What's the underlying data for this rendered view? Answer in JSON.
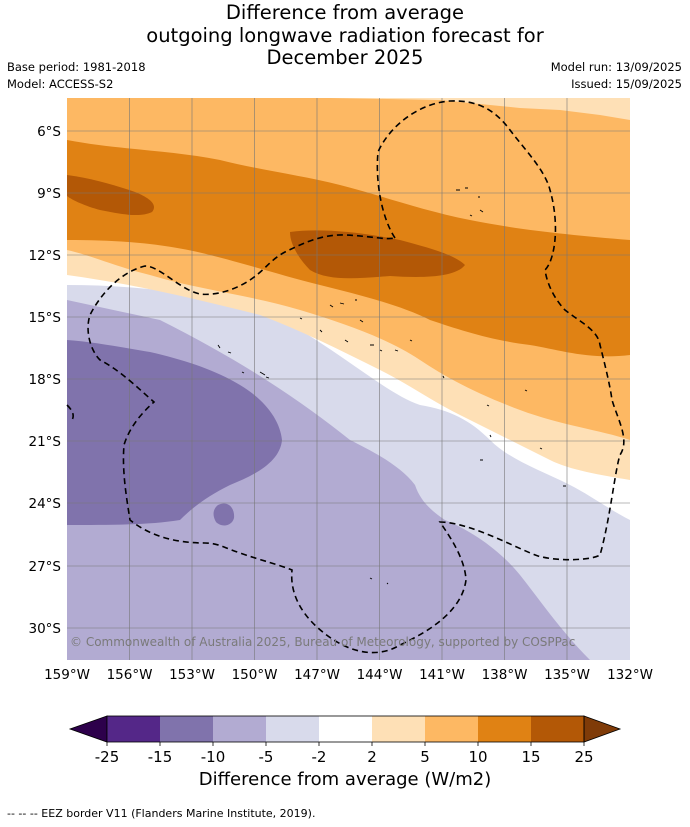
{
  "title": {
    "line1": "Difference from average",
    "line2": "outgoing longwave radiation forecast for",
    "line3": "December 2025"
  },
  "meta": {
    "base_period": "Base period: 1981-2018",
    "model": "Model: ACCESS-S2",
    "model_run": "Model run: 13/09/2025",
    "issued": "Issued: 15/09/2025"
  },
  "map": {
    "x_ticks": [
      "159°W",
      "156°W",
      "153°W",
      "150°W",
      "147°W",
      "144°W",
      "141°W",
      "138°W",
      "135°W",
      "132°W"
    ],
    "y_ticks": [
      "6°S",
      "9°S",
      "12°S",
      "15°S",
      "18°S",
      "21°S",
      "24°S",
      "27°S",
      "30°S"
    ],
    "copyright": "© Commonwealth of Australia 2025, Bureau of Meteorology, supported by COSPPac"
  },
  "colorbar": {
    "ticks": [
      "-25",
      "-15",
      "-10",
      "-5",
      "-2",
      "2",
      "5",
      "10",
      "15",
      "25"
    ],
    "label": "Difference from average (W/m2)",
    "colors": {
      "under": "#2d004b",
      "bins": [
        "#542788",
        "#8073ac",
        "#b2abd2",
        "#d8daeb",
        "#ffffff",
        "#fee0b6",
        "#fdb863",
        "#e08214",
        "#b35806"
      ],
      "over": "#7f3b08"
    }
  },
  "footer": "-- -- -- EEZ border V11 (Flanders Marine Institute, 2019)."
}
